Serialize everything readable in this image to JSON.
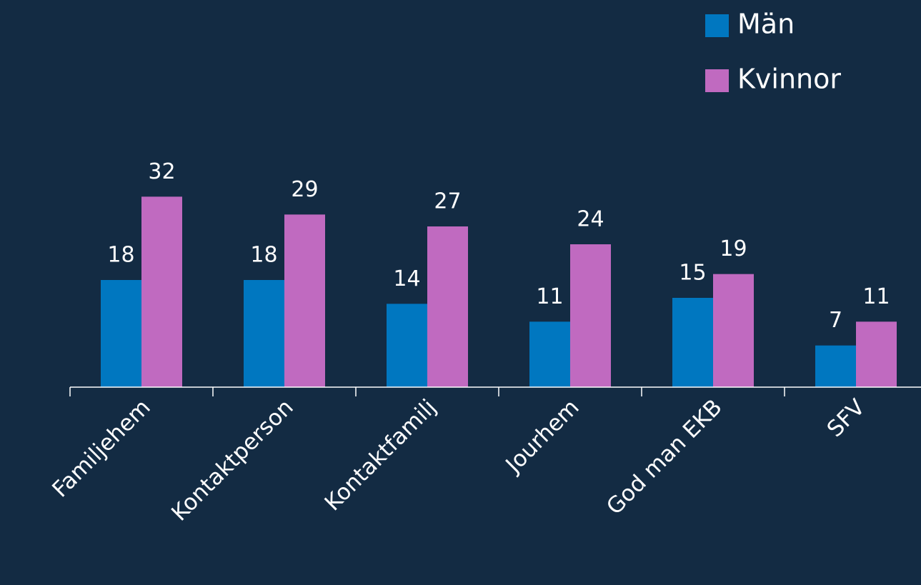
{
  "chart_data": {
    "type": "bar",
    "categories": [
      "Familjehem",
      "Kontaktperson",
      "Kontaktfamilj",
      "Jourhem",
      "God man EKB",
      "SFV"
    ],
    "series": [
      {
        "name": "Män",
        "color": "#0077c0",
        "values": [
          18,
          18,
          14,
          11,
          15,
          7
        ]
      },
      {
        "name": "Kvinnor",
        "color": "#c06ac0",
        "values": [
          32,
          29,
          27,
          24,
          19,
          11
        ]
      }
    ],
    "legend": "top-right"
  }
}
